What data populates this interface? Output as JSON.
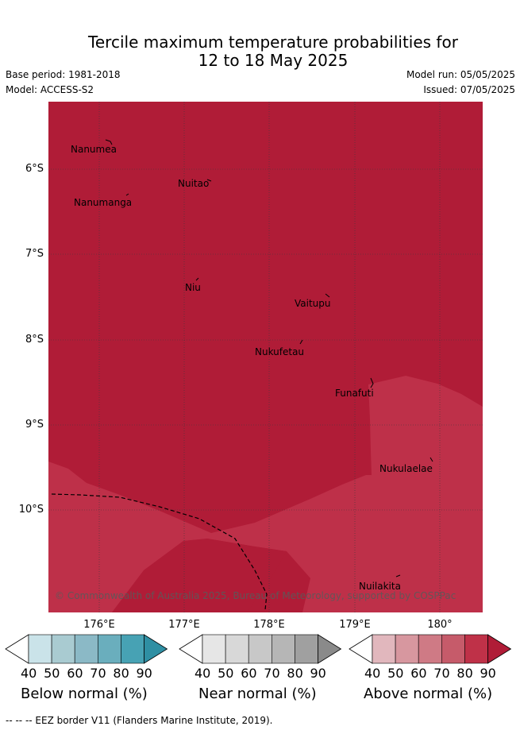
{
  "title": {
    "line1": "Tercile maximum temperature probabilities for",
    "line2": "12 to 18 May 2025"
  },
  "meta": {
    "base_period": "Base period: 1981-2018",
    "model": "Model: ACCESS-S2",
    "model_run": "Model run: 05/05/2025",
    "issued": "Issued: 07/05/2025"
  },
  "map": {
    "lat_ticks": [
      "6°S",
      "7°S",
      "8°S",
      "9°S",
      "10°S"
    ],
    "lon_ticks": [
      "176°E",
      "177°E",
      "178°E",
      "179°E",
      "180°"
    ],
    "places": [
      "Nanumea",
      "Nuitao",
      "Nanumanga",
      "Niu",
      "Vaitupu",
      "Nukufetau",
      "Funafuti",
      "Nukulaelae",
      "Nuilakita"
    ],
    "copyright": "© Commonwealth of Australia 2025, Bureau of Meteorology, supported by COSPPac",
    "colors": {
      "above_90": "#b01c37",
      "above_80": "#be3049"
    }
  },
  "colorbars": [
    {
      "label": "Below normal (%)",
      "ticks": [
        "40",
        "50",
        "60",
        "70",
        "80",
        "90"
      ],
      "colors": [
        "#cae3e9",
        "#a9cbd1",
        "#8bb9c6",
        "#6aaebd",
        "#47a2b4",
        "#2f8fa3"
      ]
    },
    {
      "label": "Near normal (%)",
      "ticks": [
        "40",
        "50",
        "60",
        "70",
        "80",
        "90"
      ],
      "colors": [
        "#e6e6e6",
        "#d8d8d8",
        "#c8c8c8",
        "#b6b6b6",
        "#a0a0a0",
        "#8a8a8a"
      ]
    },
    {
      "label": "Above normal (%)",
      "ticks": [
        "40",
        "50",
        "60",
        "70",
        "80",
        "90"
      ],
      "colors": [
        "#e1b7bd",
        "#d7979f",
        "#cf7a85",
        "#c65b6a",
        "#bf3148",
        "#b01c37"
      ]
    }
  ],
  "footnote": "-- -- -- EEZ border V11 (Flanders Marine Institute, 2019)."
}
